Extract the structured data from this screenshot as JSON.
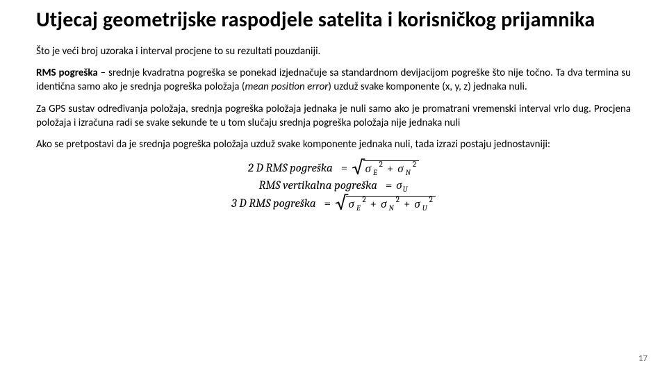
{
  "title": "Utjecaj geometrijske raspodjele satelita i korisničkog prijamnika",
  "p1": "Što je veći broj uzoraka i interval procjene to su rezultati pouzdaniji.",
  "p2_bold": "RMS pogreška",
  "p2_rest1": " – srednje kvadratna pogreška se ponekad izjednačuje sa standardnom devijacijom pogreške što nije točno. Ta dva termina su identična samo ako je srednja pogreška položaja (",
  "p2_ital": "mean position error",
  "p2_rest2": ") uzduž svake komponente (x, y, z) jednaka nuli.",
  "p3": "Za GPS sustav određivanja položaja, srednja pogreška položaja jednaka je nuli samo ako je promatrani vremenski interval vrlo dug. Procjena položaja i izračuna radi se svake sekunde te u tom slučaju srednja pogreška položaja nije jednaka nuli",
  "p4": "Ako se pretpostavi da je srednja pogreška položaja uzduž svake komponente jednaka nuli, tada izrazi postaju jednostavniji:",
  "formulas": {
    "f1_lhs": "2 D RMS pogreška",
    "f2_lhs": "RMS vertikalna pogreška",
    "f3_lhs": "3 D RMS pogreška",
    "sigma": "σ",
    "sub_E": "E",
    "sub_N": "N",
    "sub_U": "U",
    "sq": "2",
    "eq": "=",
    "plus": "+",
    "radical": "√"
  },
  "pagenum": "17",
  "colors": {
    "text": "#000000",
    "bg": "#ffffff",
    "pagenum": "#6a6a6a"
  }
}
